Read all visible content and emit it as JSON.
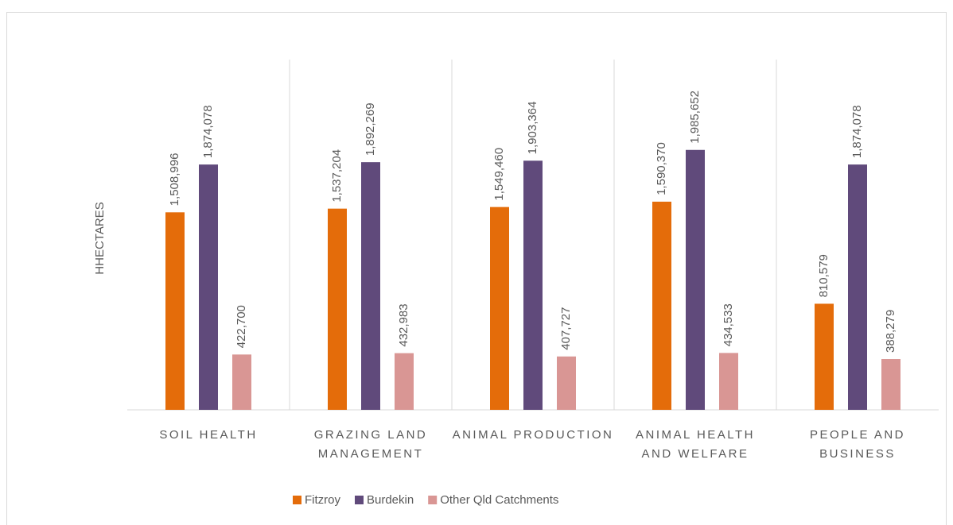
{
  "chart_data": {
    "type": "bar",
    "y_label": "HHECTARES",
    "categories": [
      "SOIL HEALTH",
      "GRAZING LAND MANAGEMENT",
      "ANIMAL PRODUCTION",
      "ANIMAL HEALTH AND WELFARE",
      "PEOPLE AND BUSINESS"
    ],
    "series": [
      {
        "name": "Fitzroy",
        "color": "#e46c0a",
        "values": [
          1508996,
          1537204,
          1549460,
          1590370,
          810579
        ],
        "value_labels": [
          "1,508,996",
          "1,537,204",
          "1,549,460",
          "1,590,370",
          "810,579"
        ]
      },
      {
        "name": "Burdekin",
        "color": "#604a7b",
        "values": [
          1874078,
          1892269,
          1903364,
          1985652,
          1874078
        ],
        "value_labels": [
          "1,874,078",
          "1,892,269",
          "1,903,364",
          "1,985,652",
          "1,874,078"
        ]
      },
      {
        "name": "Other Qld Catchments",
        "color": "#d99694",
        "values": [
          422700,
          432983,
          407727,
          434533,
          388279
        ],
        "value_labels": [
          "422,700",
          "432,983",
          "407,727",
          "434,533",
          "388,279"
        ]
      }
    ],
    "ylim": [
      0,
      2500000
    ],
    "legend": "bottom"
  }
}
